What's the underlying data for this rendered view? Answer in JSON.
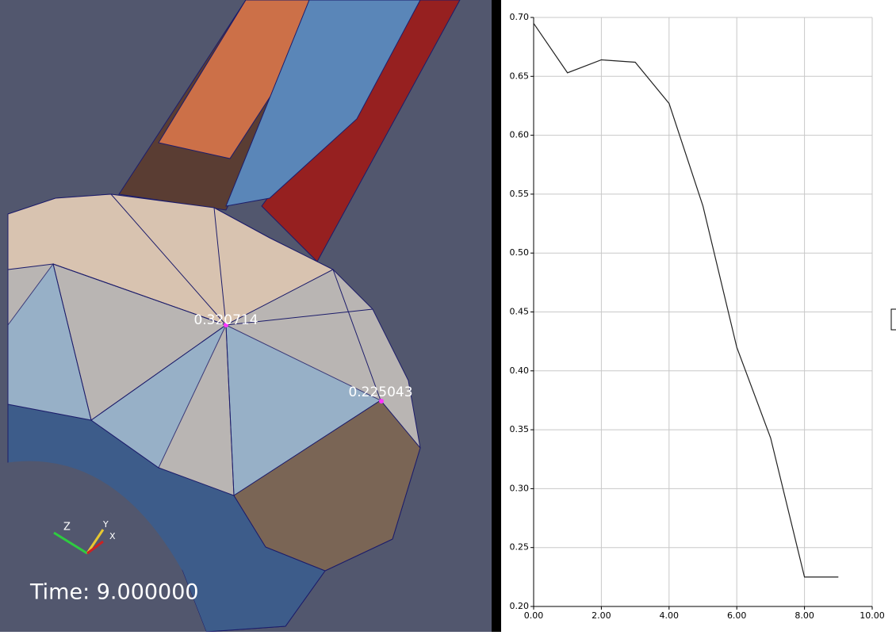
{
  "viewport": {
    "annotations": [
      {
        "label": "0.320714"
      },
      {
        "label": "0.225043"
      }
    ],
    "time_label": "Time: 9.000000",
    "axis_labels": [
      "Z",
      "Y",
      "X"
    ]
  },
  "chart_data": {
    "type": "line",
    "x": [
      0,
      1,
      2,
      3,
      4,
      5,
      6,
      7,
      8,
      9
    ],
    "values": [
      0.695,
      0.653,
      0.664,
      0.662,
      0.627,
      0.54,
      0.42,
      0.343,
      0.225,
      0.225
    ],
    "color": "#222222",
    "xlim": [
      0,
      10
    ],
    "xticks": [
      {
        "value": 0,
        "label": "0.00"
      },
      {
        "value": 2,
        "label": "2.00"
      },
      {
        "value": 4,
        "label": "4.00"
      },
      {
        "value": 6,
        "label": "6.00"
      },
      {
        "value": 8,
        "label": "8.00"
      },
      {
        "value": 10,
        "label": "10.00"
      }
    ],
    "ylim": [
      0.2,
      0.7
    ],
    "yticks": [
      {
        "value": 0.2,
        "label": "0.20"
      },
      {
        "value": 0.25,
        "label": "0.25"
      },
      {
        "value": 0.3,
        "label": "0.30"
      },
      {
        "value": 0.35,
        "label": "0.35"
      },
      {
        "value": 0.4,
        "label": "0.40"
      },
      {
        "value": 0.45,
        "label": "0.45"
      },
      {
        "value": 0.5,
        "label": "0.50"
      },
      {
        "value": 0.55,
        "label": "0.55"
      },
      {
        "value": 0.6,
        "label": "0.60"
      },
      {
        "value": 0.65,
        "label": "0.65"
      },
      {
        "value": 0.7,
        "label": "0.70"
      }
    ],
    "grid": true
  }
}
